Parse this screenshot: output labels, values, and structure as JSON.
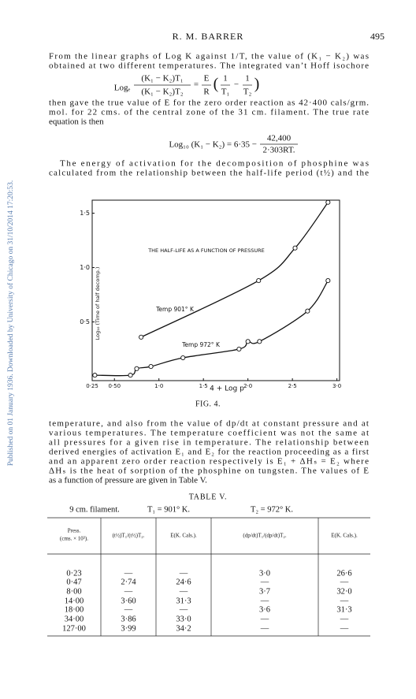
{
  "header": {
    "author": "R. M. BARRER",
    "page": "495"
  },
  "sidebar": "Published on 01 January 1936. Downloaded by University of Chicago on 31/10/2014 17:20:53.",
  "text": [
    [
      "From the linear graphs of Log K against 1/T, the value of (K₁ − K₂) was",
      "obtained at two different temperatures.  The integrated van’t Hoff isochore"
    ],
    [
      "then gave the true value of E for the zero order reaction as 42·400 cals/grm.",
      "mol. for 22 cms. of the central zone of the 31 cm. filament.  The true rate",
      "equation is then"
    ],
    [
      "The energy of activation for the decomposition of phosphine was",
      "calculated from the relationship between the half-life period (t½) and the"
    ],
    [
      "temperature, and also from the value of dp/dt at constant pressure and at",
      "various temperatures.  The temperature coefficient was not the same at",
      "all pressures for a given rise in temperature.  The relationship between",
      "derived energies of activation E₁ and E₂ for the reaction proceeding as a first",
      "and an apparent zero order reaction respectively is E₁ + ΔHₛ = E₂ where",
      "ΔHₛ is the heat of sorption of the phosphine on tungsten.  The values of E",
      "as a function of pressure are given in Table V."
    ]
  ],
  "equation1": {
    "lhs": "Logₑ",
    "num": "(K₁ − K₂)T₁",
    "den": "(K₁ − K₂)T₂",
    "eq": "=",
    "rnum": "E",
    "rden": "R",
    "open": "(",
    "a_num": "1",
    "a_den": "T₁",
    "minus": "−",
    "b_num": "1",
    "b_den": "T₂",
    "close": ")"
  },
  "equation2": {
    "lhs": "Log₁₀ (K₁ − K₂) = 6·35 −",
    "num": "42,400",
    "den": "2·303RT."
  },
  "chart_data": {
    "type": "scatter",
    "title": "THE HALF-LIFE AS A FUNCTION OF PRESSURE",
    "x_label": "4 + Log p",
    "y_label": "Log₁₀ (Time of half decomp.)",
    "xlim": [
      0.25,
      3.03
    ],
    "ylim": [
      -0.04,
      1.62
    ],
    "xticks": [
      {
        "value": 0.25,
        "label": "0·25"
      },
      {
        "value": 0.5,
        "label": "0·50"
      },
      {
        "value": 1.0,
        "label": "1·0"
      },
      {
        "value": 1.5,
        "label": "1·5"
      },
      {
        "value": 2.0,
        "label": "2·0"
      },
      {
        "value": 2.5,
        "label": "2·5"
      },
      {
        "value": 3.0,
        "label": "3·0"
      }
    ],
    "yticks": [
      {
        "value": 0.5,
        "label": "0·5"
      },
      {
        "value": 1.0,
        "label": "1·0"
      },
      {
        "value": 1.5,
        "label": "1·5"
      }
    ],
    "series": [
      {
        "name": "Temp 901° K",
        "color": "#111111",
        "x": [
          0.8,
          2.12,
          2.53,
          2.9
        ],
        "values": [
          0.36,
          0.88,
          1.18,
          1.6
        ]
      },
      {
        "name": "Temp 972° K",
        "color": "#111111",
        "x": [
          0.28,
          0.68,
          0.75,
          0.91,
          1.27,
          1.9,
          2.0,
          2.13,
          2.67,
          2.9
        ],
        "values": [
          0.01,
          0.01,
          0.07,
          0.09,
          0.17,
          0.25,
          0.32,
          0.32,
          0.6,
          0.88
        ]
      }
    ]
  },
  "caption": "FIG. 4.",
  "table": {
    "title": "TABLE V.",
    "subtitle": [
      "9 cm. filament.",
      "T₁ = 901° K.",
      "T₂ = 972° K."
    ],
    "headers": [
      [
        "Press.",
        "(cms. × 10³)."
      ],
      [
        "(t½)T₁/(t½)T₂."
      ],
      [
        "E(K. Cals.)."
      ],
      [
        "(dp/dt)T₁/(dp/dt)T₂."
      ],
      [
        "E(K. Cals.)."
      ]
    ],
    "rows": [
      [
        "0·23",
        "—",
        "—",
        "3·0",
        "26·6"
      ],
      [
        "0·47",
        "2·74",
        "24·6",
        "—",
        "—"
      ],
      [
        "8·00",
        "—",
        "—",
        "3·7",
        "32·0"
      ],
      [
        "14·00",
        "3·60",
        "31·3",
        "—",
        "—"
      ],
      [
        "18·00",
        "—",
        "—",
        "3·6",
        "31·3"
      ],
      [
        "34·00",
        "3·86",
        "33·0",
        "—",
        "—"
      ],
      [
        "127·00",
        "3·99",
        "34·2",
        "—",
        "—"
      ]
    ]
  }
}
